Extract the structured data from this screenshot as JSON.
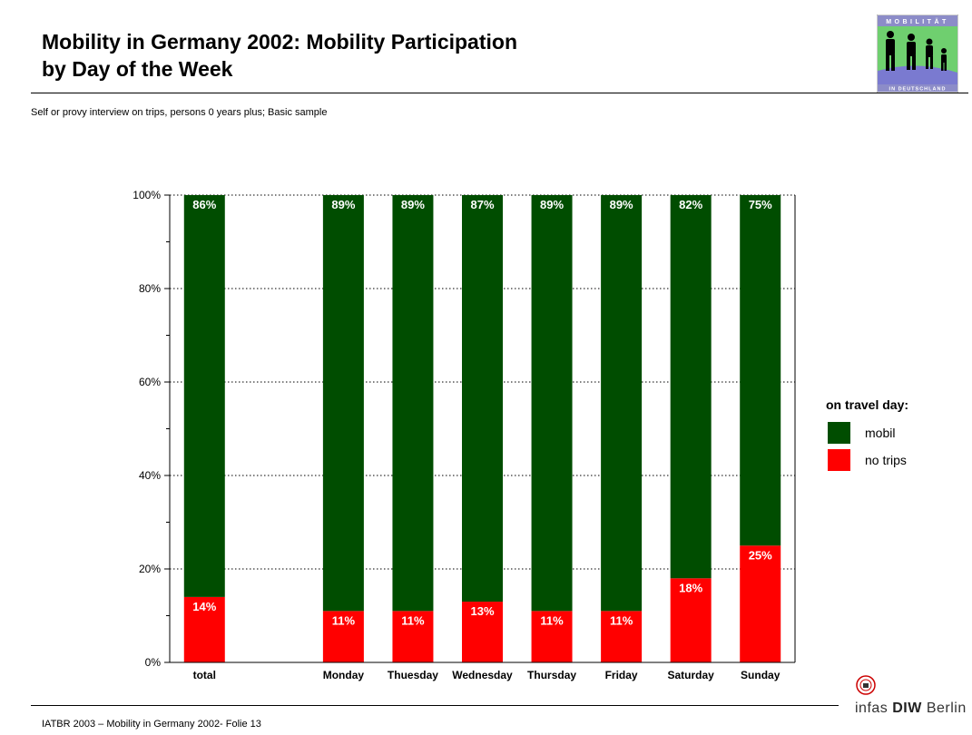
{
  "header": {
    "title_line1": "Mobility in Germany 2002: Mobility Participation",
    "title_line2": "by Day of the Week",
    "subtitle": "Self or provy interview on trips, persons 0 years plus; Basic sample"
  },
  "logo": {
    "top_text": "MOBILITÄT",
    "bottom_text": "IN DEUTSCHLAND",
    "icon": "people-silhouettes-icon"
  },
  "footer": {
    "text": "IATBR 2003 – Mobility in Germany 2002- Folie 13",
    "brand_thin": "infas",
    "brand_bold": "DIW",
    "brand_city": "Berlin",
    "seal_icon": "diw-seal-icon"
  },
  "colors": {
    "mobil": "#004d00",
    "no_trips": "#ff0000",
    "grid": "#000000"
  },
  "chart_data": {
    "type": "bar",
    "stacked": true,
    "title": "Mobility in Germany 2002: Mobility Participation by Day of the Week",
    "xlabel": "",
    "ylabel": "",
    "ylim": [
      0,
      100
    ],
    "yticks": [
      "0%",
      "20%",
      "40%",
      "60%",
      "80%",
      "100%"
    ],
    "grid": "dotted horizontal",
    "legend_title": "on travel day:",
    "legend_position": "right",
    "categories": [
      "total",
      "",
      "Monday",
      "Thuesday",
      "Wednesday",
      "Thursday",
      "Friday",
      "Saturday",
      "Sunday"
    ],
    "series": [
      {
        "name": "no trips",
        "color": "#ff0000",
        "values": [
          14,
          null,
          11,
          11,
          13,
          11,
          11,
          18,
          25
        ],
        "labels": [
          "14%",
          "",
          "11%",
          "11%",
          "13%",
          "11%",
          "11%",
          "18%",
          "25%"
        ]
      },
      {
        "name": "mobil",
        "color": "#004d00",
        "values": [
          86,
          null,
          89,
          89,
          87,
          89,
          89,
          82,
          75
        ],
        "labels": [
          "86%",
          "",
          "89%",
          "89%",
          "87%",
          "89%",
          "89%",
          "82%",
          "75%"
        ]
      }
    ]
  }
}
